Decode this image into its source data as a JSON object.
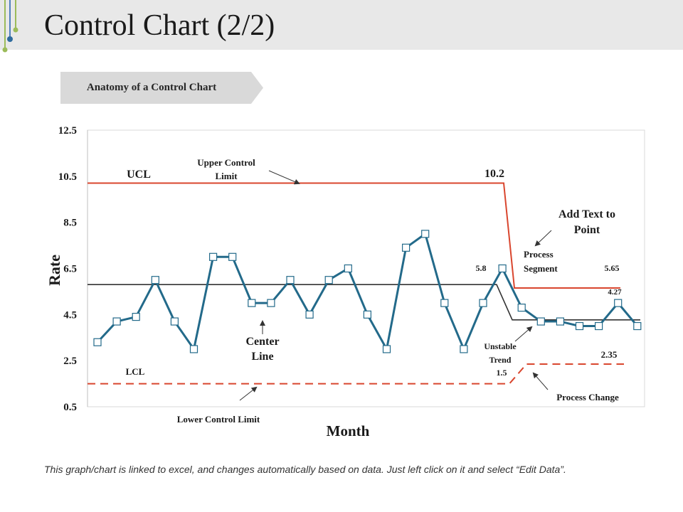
{
  "slide": {
    "title": "Control Chart (2/2)",
    "subtitle": "Anatomy of a Control Chart",
    "footnote": "This graph/chart is linked to excel, and changes automatically based on data. Just left click on it and select “Edit Data”."
  },
  "colors": {
    "series": "#236a8a",
    "limit": "#d9462e",
    "center": "#333333",
    "marker_fill": "#ffffff"
  },
  "chart_data": {
    "type": "line",
    "xlabel": "Month",
    "ylabel": "Rate",
    "ylim": [
      0.5,
      12.5
    ],
    "y_ticks": [
      "12.5",
      "10.5",
      "8.5",
      "6.5",
      "4.5",
      "2.5",
      "0.5"
    ],
    "grid": false,
    "series": [
      {
        "values": [
          3.3,
          4.2,
          4.4,
          6.0,
          4.2,
          3.0,
          7.0,
          7.0,
          5.0,
          5.0,
          6.0,
          4.5,
          6.0,
          6.5,
          4.5,
          3.0,
          7.4,
          8.0,
          5.0,
          3.0,
          5.0,
          6.5,
          4.8,
          4.2,
          4.2,
          4.0,
          4.0,
          5.0,
          4.0
        ]
      }
    ],
    "ucl": {
      "segment1": 10.2,
      "segment2": 5.65
    },
    "center_line": {
      "segment1": 5.8,
      "segment2": 4.27
    },
    "lcl": {
      "segment1": 1.5,
      "segment2": 2.35
    },
    "annotations": {
      "ucl": "UCL",
      "lcl": "LCL",
      "upper_control_limit_line1": "Upper Control",
      "upper_control_limit_line2": "Limit",
      "lower_control_limit": "Lower Control Limit",
      "center_line_line1": "Center",
      "center_line_line2": "Line",
      "add_text_line1": "Add Text to",
      "add_text_line2": "Point",
      "process_segment_line1": "Process",
      "process_segment_line2": "Segment",
      "unstable_trend_line1": "Unstable",
      "unstable_trend_line2": "Trend",
      "process_change": "Process Change",
      "value_ucl1": "10.2",
      "value_ucl2": "5.65",
      "value_center1": "5.8",
      "value_center2": "4.27",
      "value_lcl1": "1.5",
      "value_lcl2": "2.35"
    }
  }
}
